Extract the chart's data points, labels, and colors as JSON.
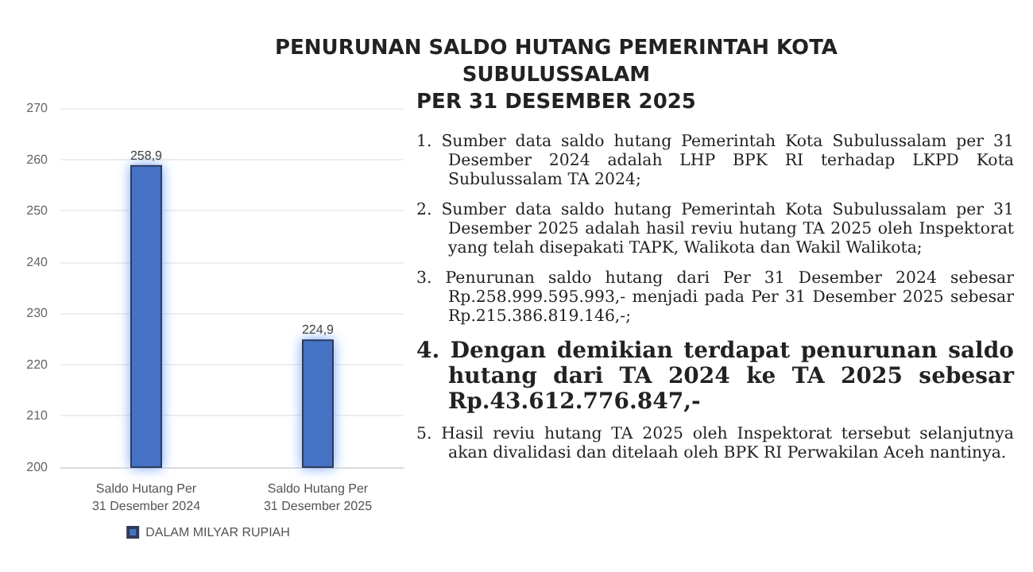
{
  "chart_data": {
    "type": "bar",
    "title": "PENURUNAN SALDO HUTANG PEMERINTAH KOTA SUBULUSSALAM\nPER 31 DESEMBER 2025",
    "categories": [
      "Saldo Hutang Per\n31 Desember 2024",
      "Saldo Hutang Per\n31 Desember 2025"
    ],
    "series": [
      {
        "name": "DALAM MILYAR RUPIAH",
        "color": "#4472c4",
        "values": [
          258.9,
          224.9
        ],
        "value_labels": [
          "258,9",
          "224,9"
        ]
      }
    ],
    "ylim": [
      200,
      270
    ],
    "yticks": [
      200,
      210,
      220,
      230,
      240,
      250,
      260,
      270
    ],
    "grid": "y",
    "legend": "bottom",
    "annotations": [
      "1. Sumber data saldo hutang Pemerintah Kota Subulussalam per 31 Desember 2024 adalah LHP BPK RI terhadap LKPD Kota Subulussalam TA 2024;",
      "2. Sumber data saldo hutang Pemerintah Kota Subulussalam per 31 Desember 2025 adalah hasil reviu hutang TA 2025 oleh Inspektorat yang telah disepakati TAPK, Walikota dan Wakil Walikota;",
      "3. Penurunan saldo hutang dari Per 31 Desember 2024 sebesar Rp.258.999.595.993,- menjadi pada Per 31 Desember 2025 sebesar Rp.215.386.819.146,-;",
      "4. Dengan demikian terdapat penurunan saldo hutang dari TA 2024 ke TA 2025 sebesar Rp.43.612.776.847,-",
      "5. Hasil reviu hutang TA 2025 oleh Inspektorat tersebut selanjutnya akan divalidasi dan ditelaah oleh BPK RI Perwakilan Aceh nantinya."
    ]
  }
}
